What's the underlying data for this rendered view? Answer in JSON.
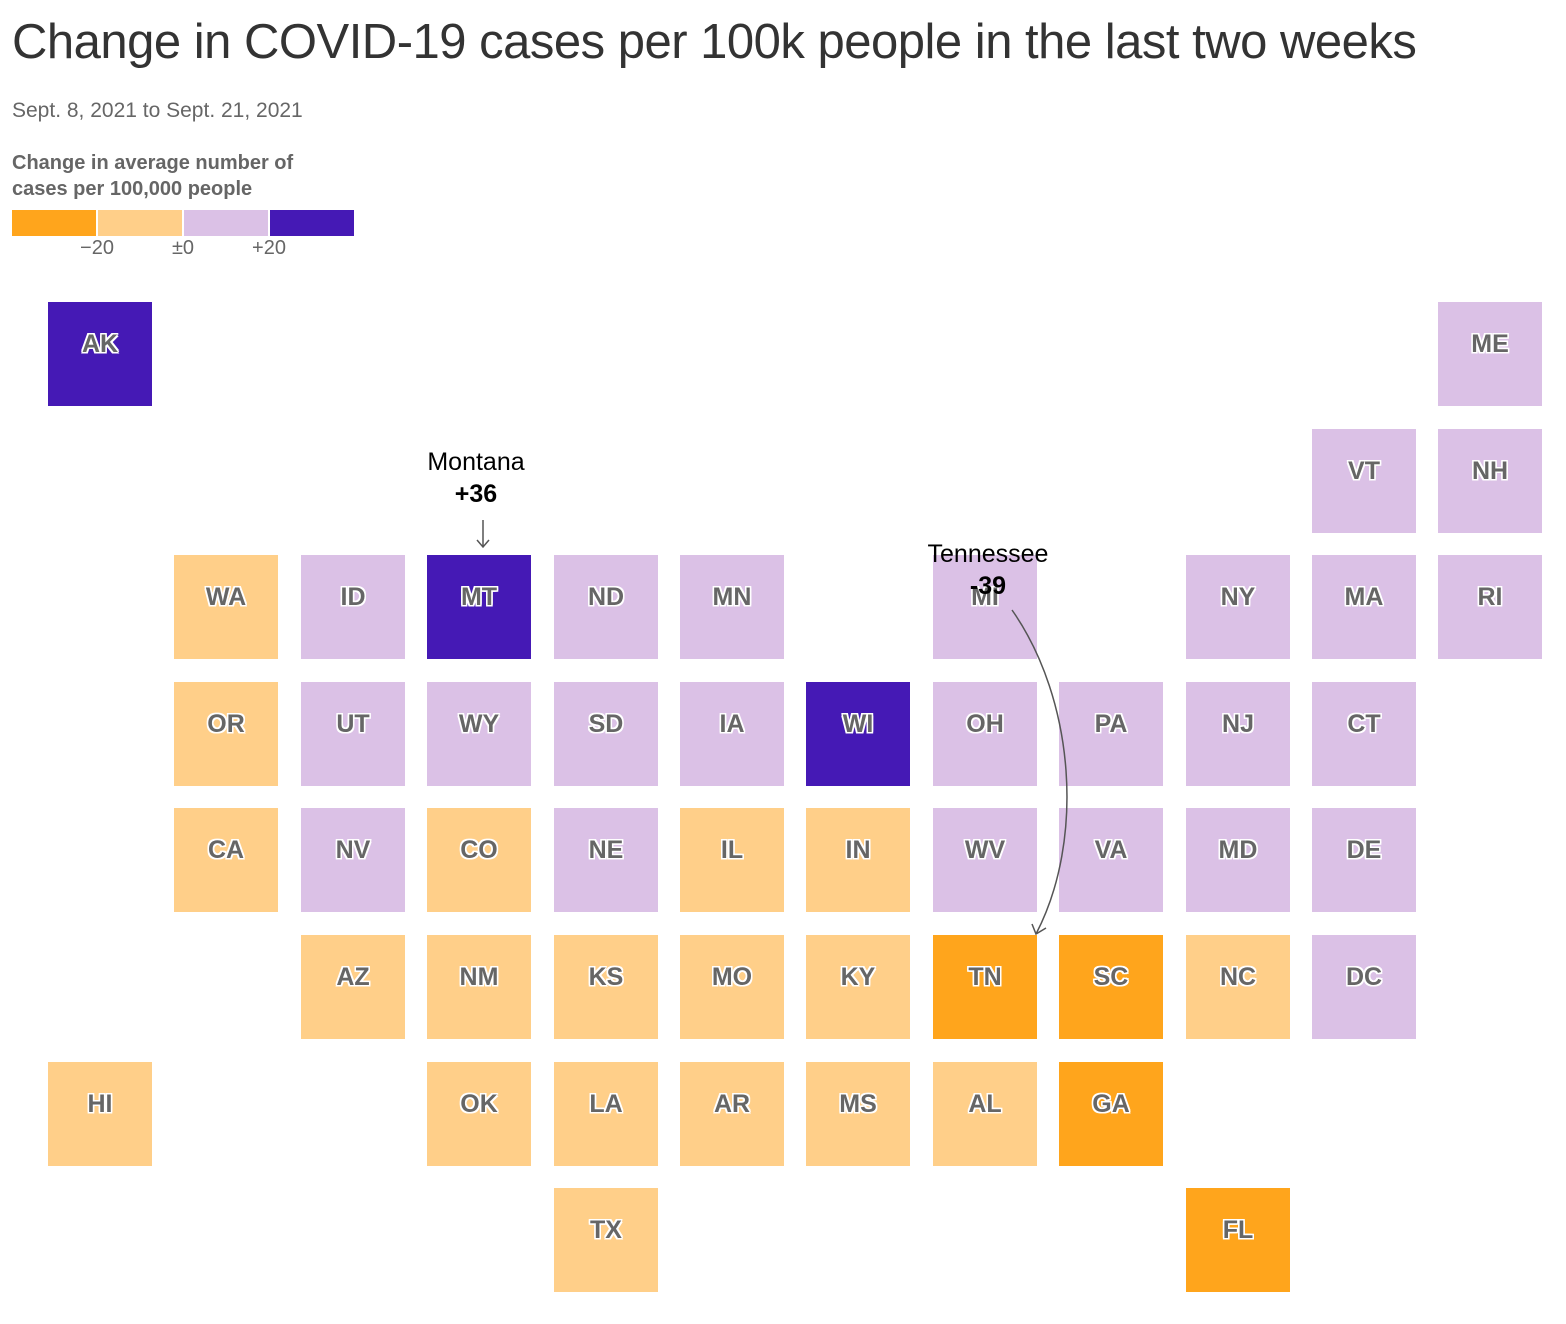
{
  "title": "Change in COVID-19 cases per 100k people in the last two weeks",
  "subtitle": "Sept. 8, 2021 to Sept. 21, 2021",
  "legend": {
    "title": "Change in average number of cases per 100,000 people",
    "bins": [
      {
        "color": "#FFA51C",
        "range": "< -20"
      },
      {
        "color": "#FFCF89",
        "range": "-20 to 0"
      },
      {
        "color": "#DBC1E6",
        "range": "0 to +20"
      },
      {
        "color": "#4519B5",
        "range": "> +20"
      }
    ],
    "ticks": [
      "−20",
      "±0",
      "+20"
    ]
  },
  "colors": {
    "strong_decrease": "#FFA51C",
    "decrease": "#FFCF89",
    "increase": "#DBC1E6",
    "strong_increase": "#4519B5"
  },
  "chart_data": {
    "type": "tile-grid-map",
    "metric": "Change in average number of cases per 100,000 people",
    "period": "Sept. 8, 2021 to Sept. 21, 2021",
    "bins": [
      "strong_decrease",
      "decrease",
      "increase",
      "strong_increase"
    ],
    "states": [
      {
        "abbr": "AK",
        "row": 0,
        "col": 0,
        "bin": "strong_increase"
      },
      {
        "abbr": "ME",
        "row": 0,
        "col": 11,
        "bin": "increase"
      },
      {
        "abbr": "VT",
        "row": 1,
        "col": 10,
        "bin": "increase"
      },
      {
        "abbr": "NH",
        "row": 1,
        "col": 11,
        "bin": "increase"
      },
      {
        "abbr": "WA",
        "row": 2,
        "col": 1,
        "bin": "decrease"
      },
      {
        "abbr": "ID",
        "row": 2,
        "col": 2,
        "bin": "increase"
      },
      {
        "abbr": "MT",
        "row": 2,
        "col": 3,
        "bin": "strong_increase"
      },
      {
        "abbr": "ND",
        "row": 2,
        "col": 4,
        "bin": "increase"
      },
      {
        "abbr": "MN",
        "row": 2,
        "col": 5,
        "bin": "increase"
      },
      {
        "abbr": "MI",
        "row": 2,
        "col": 7,
        "bin": "increase"
      },
      {
        "abbr": "NY",
        "row": 2,
        "col": 9,
        "bin": "increase"
      },
      {
        "abbr": "MA",
        "row": 2,
        "col": 10,
        "bin": "increase"
      },
      {
        "abbr": "RI",
        "row": 2,
        "col": 11,
        "bin": "increase"
      },
      {
        "abbr": "OR",
        "row": 3,
        "col": 1,
        "bin": "decrease"
      },
      {
        "abbr": "UT",
        "row": 3,
        "col": 2,
        "bin": "increase"
      },
      {
        "abbr": "WY",
        "row": 3,
        "col": 3,
        "bin": "increase"
      },
      {
        "abbr": "SD",
        "row": 3,
        "col": 4,
        "bin": "increase"
      },
      {
        "abbr": "IA",
        "row": 3,
        "col": 5,
        "bin": "increase"
      },
      {
        "abbr": "WI",
        "row": 3,
        "col": 6,
        "bin": "strong_increase"
      },
      {
        "abbr": "OH",
        "row": 3,
        "col": 7,
        "bin": "increase"
      },
      {
        "abbr": "PA",
        "row": 3,
        "col": 8,
        "bin": "increase"
      },
      {
        "abbr": "NJ",
        "row": 3,
        "col": 9,
        "bin": "increase"
      },
      {
        "abbr": "CT",
        "row": 3,
        "col": 10,
        "bin": "increase"
      },
      {
        "abbr": "CA",
        "row": 4,
        "col": 1,
        "bin": "decrease"
      },
      {
        "abbr": "NV",
        "row": 4,
        "col": 2,
        "bin": "increase"
      },
      {
        "abbr": "CO",
        "row": 4,
        "col": 3,
        "bin": "decrease"
      },
      {
        "abbr": "NE",
        "row": 4,
        "col": 4,
        "bin": "increase"
      },
      {
        "abbr": "IL",
        "row": 4,
        "col": 5,
        "bin": "decrease"
      },
      {
        "abbr": "IN",
        "row": 4,
        "col": 6,
        "bin": "decrease"
      },
      {
        "abbr": "WV",
        "row": 4,
        "col": 7,
        "bin": "increase"
      },
      {
        "abbr": "VA",
        "row": 4,
        "col": 8,
        "bin": "increase"
      },
      {
        "abbr": "MD",
        "row": 4,
        "col": 9,
        "bin": "increase"
      },
      {
        "abbr": "DE",
        "row": 4,
        "col": 10,
        "bin": "increase"
      },
      {
        "abbr": "AZ",
        "row": 5,
        "col": 2,
        "bin": "decrease"
      },
      {
        "abbr": "NM",
        "row": 5,
        "col": 3,
        "bin": "decrease"
      },
      {
        "abbr": "KS",
        "row": 5,
        "col": 4,
        "bin": "decrease"
      },
      {
        "abbr": "MO",
        "row": 5,
        "col": 5,
        "bin": "decrease"
      },
      {
        "abbr": "KY",
        "row": 5,
        "col": 6,
        "bin": "decrease"
      },
      {
        "abbr": "TN",
        "row": 5,
        "col": 7,
        "bin": "strong_decrease"
      },
      {
        "abbr": "SC",
        "row": 5,
        "col": 8,
        "bin": "strong_decrease"
      },
      {
        "abbr": "NC",
        "row": 5,
        "col": 9,
        "bin": "decrease"
      },
      {
        "abbr": "DC",
        "row": 5,
        "col": 10,
        "bin": "increase"
      },
      {
        "abbr": "HI",
        "row": 6,
        "col": 0,
        "bin": "decrease"
      },
      {
        "abbr": "OK",
        "row": 6,
        "col": 3,
        "bin": "decrease"
      },
      {
        "abbr": "LA",
        "row": 6,
        "col": 4,
        "bin": "decrease"
      },
      {
        "abbr": "AR",
        "row": 6,
        "col": 5,
        "bin": "decrease"
      },
      {
        "abbr": "MS",
        "row": 6,
        "col": 6,
        "bin": "decrease"
      },
      {
        "abbr": "AL",
        "row": 6,
        "col": 7,
        "bin": "decrease"
      },
      {
        "abbr": "GA",
        "row": 6,
        "col": 8,
        "bin": "strong_decrease"
      },
      {
        "abbr": "TX",
        "row": 7,
        "col": 4,
        "bin": "decrease"
      },
      {
        "abbr": "FL",
        "row": 7,
        "col": 9,
        "bin": "strong_decrease"
      }
    ],
    "annotations": [
      {
        "state": "MT",
        "name": "Montana",
        "value": "+36"
      },
      {
        "state": "TN",
        "name": "Tennessee",
        "value": "-39"
      }
    ]
  }
}
